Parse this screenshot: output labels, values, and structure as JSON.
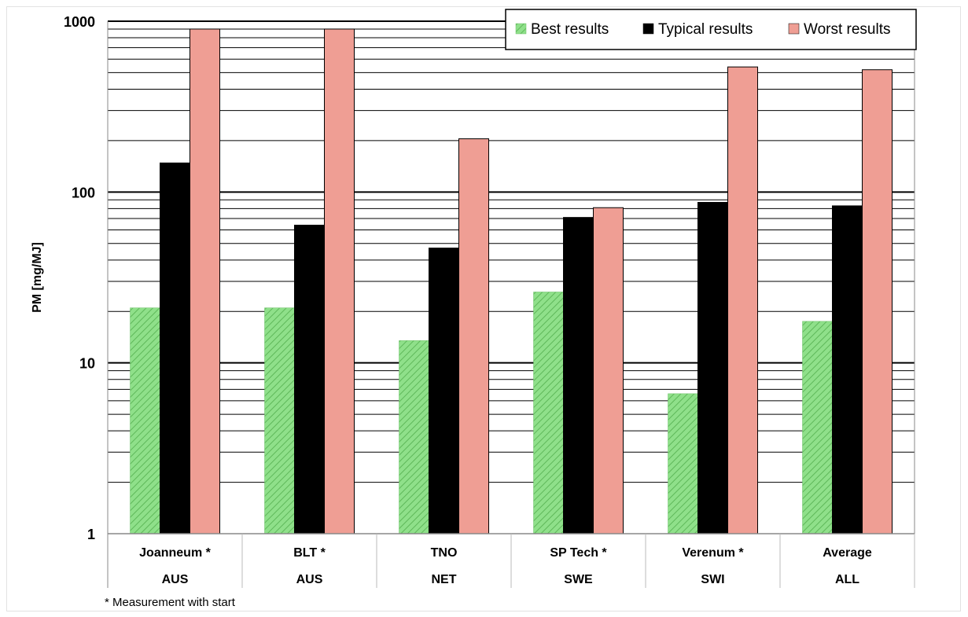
{
  "chart_data": {
    "type": "bar",
    "yscale": "log",
    "ylim": [
      1,
      1000
    ],
    "ylabel": "PM  [mg/MJ]",
    "ytick_labels": [
      "1",
      "10",
      "100",
      "1000"
    ],
    "grid": true,
    "legend_position": "top-right",
    "categories": [
      {
        "name": "Joanneum *",
        "country": "AUS"
      },
      {
        "name": "BLT  *",
        "country": "AUS"
      },
      {
        "name": "TNO",
        "country": "NET"
      },
      {
        "name": "SP Tech *",
        "country": "SWE"
      },
      {
        "name": "Verenum  *",
        "country": "SWI"
      },
      {
        "name": "Average",
        "country": "ALL"
      }
    ],
    "series": [
      {
        "name": "Best results",
        "color": "#7fd67a",
        "hatch": true,
        "values": [
          21,
          21,
          13.5,
          26,
          6.6,
          17.5
        ]
      },
      {
        "name": "Typical results",
        "color": "#000000",
        "hatch": false,
        "values": [
          148,
          64,
          47,
          71,
          87,
          83
        ]
      },
      {
        "name": "Worst results",
        "color": "#ef9e94",
        "hatch": false,
        "values": [
          900,
          900,
          205,
          81,
          540,
          520
        ]
      }
    ],
    "footnote": "* Measurement with start"
  }
}
